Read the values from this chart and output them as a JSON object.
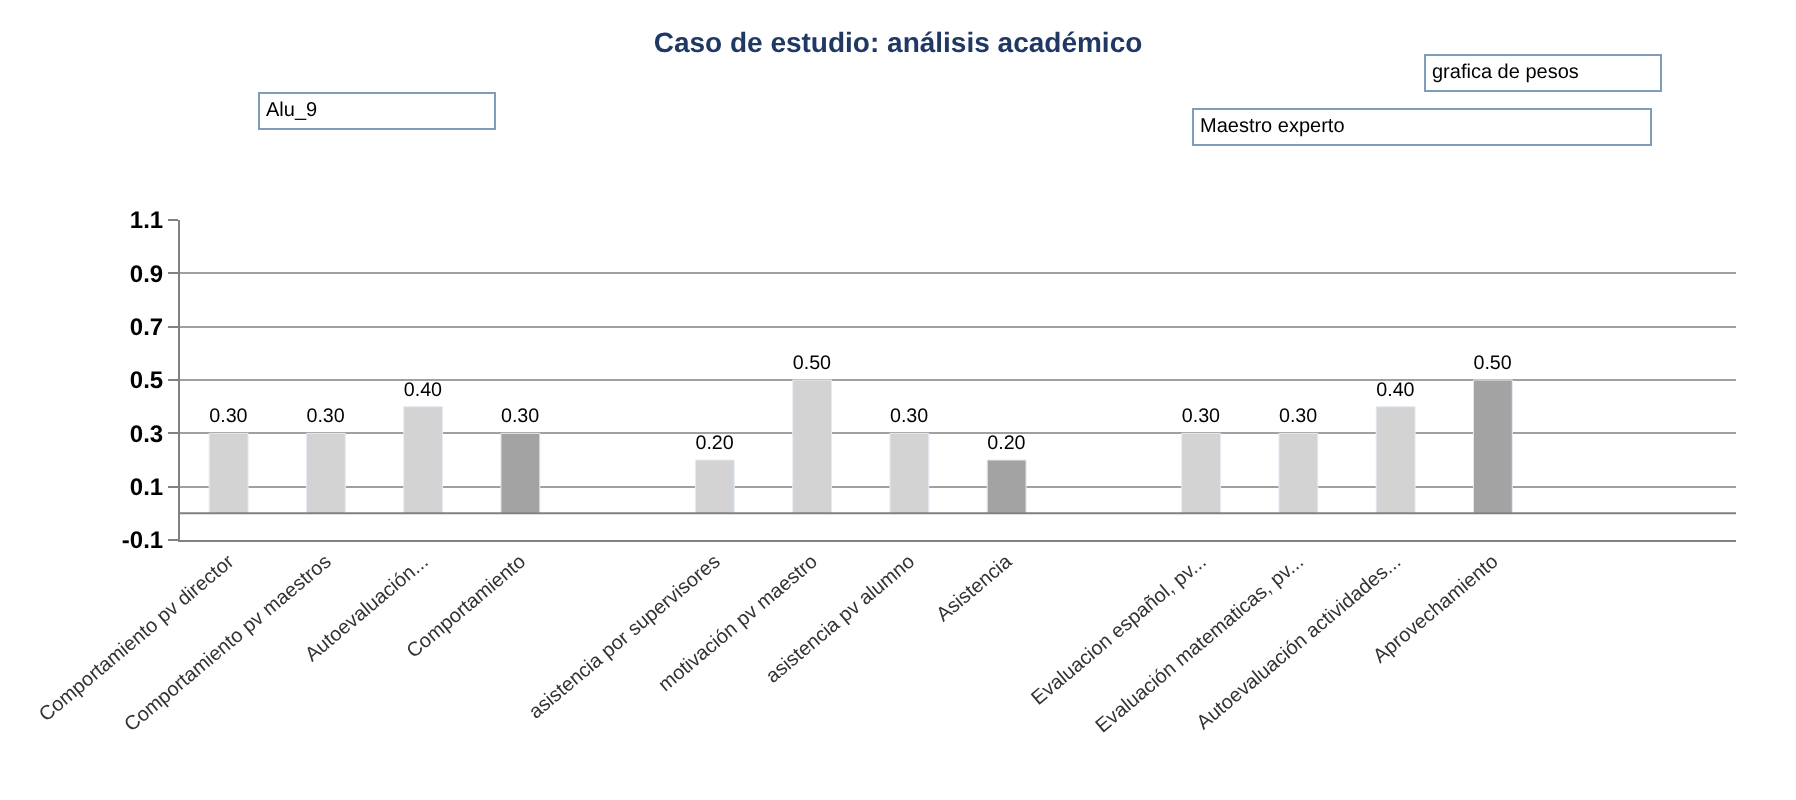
{
  "chart_data": {
    "type": "bar",
    "title": "Caso de estudio: análisis académico",
    "categories": [
      "Comportamiento pv director",
      "Comportamiento pv maestros",
      "Autoevaluación...",
      "Comportamiento",
      null,
      "asistencia por supervisores",
      "motivación pv maestro",
      "asistencia pv alumno",
      "Asistencia",
      null,
      "Evaluacion español, pv...",
      "Evaluación matematicas, pv...",
      "Autoevaluación actividades...",
      "Aprovechamiento",
      null,
      null
    ],
    "values": [
      0.3,
      0.3,
      0.4,
      0.3,
      null,
      0.2,
      0.5,
      0.3,
      0.2,
      null,
      0.3,
      0.3,
      0.4,
      0.5,
      null,
      null
    ],
    "colors": [
      "#d3d3d3",
      "#d3d3d3",
      "#d3d3d3",
      "#a3a3a3",
      null,
      "#d3d3d3",
      "#d3d3d3",
      "#d3d3d3",
      "#a3a3a3",
      null,
      "#d3d3d3",
      "#d3d3d3",
      "#d3d3d3",
      "#a3a3a3",
      null,
      null
    ],
    "value_labels": [
      "0.30",
      "0.30",
      "0.40",
      "0.30",
      null,
      "0.20",
      "0.50",
      "0.30",
      "0.20",
      null,
      "0.30",
      "0.30",
      "0.40",
      "0.50",
      null,
      null
    ],
    "ylim": [
      -0.1,
      1.1
    ],
    "yticks": [
      -0.1,
      0.1,
      0.3,
      0.5,
      0.7,
      0.9,
      1.1
    ],
    "ref_lines": [
      {
        "axis": "y",
        "value": 0,
        "color": "#808080"
      }
    ],
    "annotations": [
      "Alu_9",
      "grafica de pesos",
      "Maestro experto"
    ],
    "grid": "y",
    "legend": false
  }
}
